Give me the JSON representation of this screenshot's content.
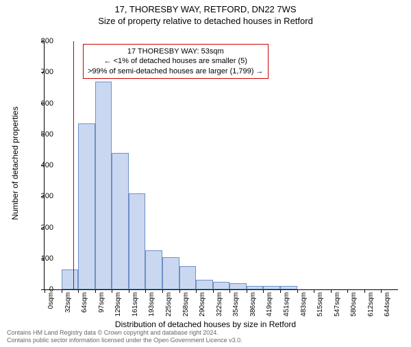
{
  "title_main": "17, THORESBY WAY, RETFORD, DN22 7WS",
  "title_sub": "Size of property relative to detached houses in Retford",
  "y_axis_label": "Number of detached properties",
  "x_axis_label": "Distribution of detached houses by size in Retford",
  "chart": {
    "type": "histogram",
    "ylim": [
      0,
      800
    ],
    "ytick_step": 100,
    "x_categories": [
      "0sqm",
      "32sqm",
      "64sqm",
      "97sqm",
      "129sqm",
      "161sqm",
      "193sqm",
      "225sqm",
      "258sqm",
      "290sqm",
      "322sqm",
      "354sqm",
      "386sqm",
      "419sqm",
      "451sqm",
      "483sqm",
      "515sqm",
      "547sqm",
      "580sqm",
      "612sqm",
      "644sqm"
    ],
    "values": [
      0,
      65,
      535,
      670,
      440,
      310,
      125,
      105,
      75,
      30,
      25,
      20,
      10,
      10,
      10,
      0,
      0,
      0,
      0,
      0,
      0
    ],
    "bar_fill": "#c9d8f0",
    "bar_stroke": "#6f8fc8",
    "background_color": "#ffffff",
    "vline_color": "#cc0000",
    "vline_position_sqm": 53,
    "annot_border_color": "#cc0000"
  },
  "annotation": {
    "line1": "17 THORESBY WAY: 53sqm",
    "line2": "← <1% of detached houses are smaller (5)",
    "line3": ">99% of semi-detached houses are larger (1,799) →"
  },
  "footnote_line1": "Contains HM Land Registry data © Crown copyright and database right 2024.",
  "footnote_line2": "Contains public sector information licensed under the Open Government Licence v3.0."
}
